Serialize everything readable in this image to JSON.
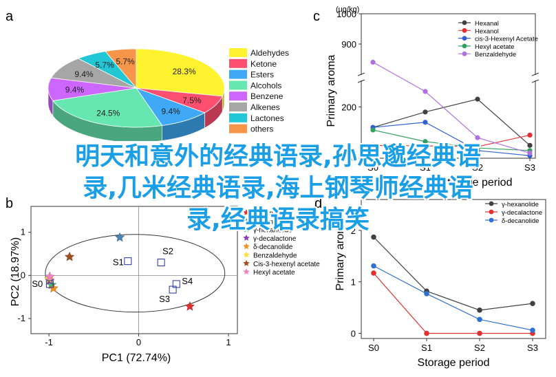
{
  "panels": {
    "a": "a",
    "b": "b",
    "c": "c",
    "d": "d"
  },
  "overlay_lines": [
    "明天和意外的经典语录,孙思邈经典语",
    "录,几米经典语录,海上钢琴师经典语",
    "录,经典语录搞笑"
  ],
  "chart_data": [
    {
      "id": "a",
      "type": "pie",
      "style": "3d",
      "slices": [
        {
          "name": "Aldehydes",
          "value": 28.3,
          "label": "28.3%",
          "color": "#fff22e"
        },
        {
          "name": "Ketone",
          "value": 7.5,
          "label": "7.5%",
          "color": "#ff4f70"
        },
        {
          "name": "Esters",
          "value": 9.4,
          "label": "9.4%",
          "color": "#3fa9f5"
        },
        {
          "name": "Alcohols",
          "value": 24.5,
          "label": "24.5%",
          "color": "#66e6b0"
        },
        {
          "name": "Benzene",
          "value": 9.4,
          "label": "9.4%",
          "color": "#cc66ff"
        },
        {
          "name": "Alkenes",
          "value": 9.4,
          "label": "9.4%",
          "color": "#a6a6a6"
        },
        {
          "name": "Lactones",
          "value": 5.7,
          "label": "5.7%",
          "color": "#22c7d6"
        },
        {
          "name": "others",
          "value": 5.7,
          "label": "5.7%",
          "color": "#f7964a"
        }
      ],
      "legend": [
        "Aldehydes",
        "Ketone",
        "Esters",
        "Alcohols",
        "Benzene",
        "Alkenes",
        "Lactones",
        "others"
      ],
      "legend_position": "right"
    },
    {
      "id": "b",
      "type": "scatter",
      "xlabel": "PC1 (72.74%)",
      "ylabel": "PC2 (18.97%)",
      "xlim": [
        -1.2,
        1.1
      ],
      "ylim": [
        -1.35,
        1.6
      ],
      "xticks": [
        -1,
        0,
        1
      ],
      "yticks": [
        -1,
        0,
        1
      ],
      "xtick_labels": [
        "-1",
        "0",
        "1"
      ],
      "ytick_labels": [
        "-1",
        "0",
        "1"
      ],
      "samples": [
        {
          "label": "S0",
          "x": -0.99,
          "y": -0.2
        },
        {
          "label": "S1",
          "x": -0.12,
          "y": 0.33
        },
        {
          "label": "S2",
          "x": 0.25,
          "y": 0.3
        },
        {
          "label": "S3",
          "x": 0.38,
          "y": -0.33
        },
        {
          "label": "S4",
          "x": 0.42,
          "y": -0.2
        }
      ],
      "variables": [
        {
          "name": "Hexanol",
          "x": 0.57,
          "y": -0.72,
          "color": "#e03030"
        },
        {
          "name": "Hexanal",
          "x": -0.21,
          "y": 0.88,
          "color": "#4a86b5"
        },
        {
          "name": "γ-hexanolide",
          "x": -0.97,
          "y": -0.22,
          "color": "#40b870"
        },
        {
          "name": "γ-decalactone",
          "x": -0.99,
          "y": -0.12,
          "color": "#8a3fb0"
        },
        {
          "name": "δ-decanolide",
          "x": -0.95,
          "y": -0.3,
          "color": "#f09020"
        },
        {
          "name": "Benzaldehyde",
          "x": -1.0,
          "y": -0.08,
          "color": "#f8e040"
        },
        {
          "name": "Cis-3-hexenyl acetate",
          "x": -0.77,
          "y": 0.43,
          "color": "#a05020"
        },
        {
          "name": "Hexyl acetate",
          "x": -0.99,
          "y": -0.03,
          "color": "#f080c0"
        }
      ]
    },
    {
      "id": "c",
      "type": "line",
      "xlabel": "Storage period",
      "ylabel": "Primary aroma",
      "yunit": "(ug/kg)",
      "categories": [
        "S0",
        "S1",
        "S2",
        "S3"
      ],
      "y_axis_break": [
        300,
        800
      ],
      "yticks": [
        0,
        200,
        900,
        1000
      ],
      "ytick_labels": [
        "0",
        "200",
        "900",
        "1000"
      ],
      "series": [
        {
          "name": "Hexanal",
          "color": "#404040",
          "values": [
            120,
            180,
            230,
            50
          ]
        },
        {
          "name": "Hexanol",
          "color": "#e03030",
          "values": [
            50,
            48,
            45,
            90
          ]
        },
        {
          "name": "cis-3-Hexenyl Acetate",
          "color": "#3060d0",
          "values": [
            120,
            140,
            30,
            10
          ]
        },
        {
          "name": "Hexyl acetate",
          "color": "#30a060",
          "values": [
            110,
            65,
            40,
            30
          ]
        },
        {
          "name": "Benzaldehyde",
          "color": "#b070e0",
          "values": [
            840,
            260,
            80,
            20
          ]
        }
      ]
    },
    {
      "id": "d",
      "type": "line",
      "xlabel": "Storage period",
      "ylabel": "Primary aroma",
      "categories": [
        "S0",
        "S1",
        "S2",
        "S3"
      ],
      "ylim": [
        -0.1,
        2.6
      ],
      "yticks": [
        0,
        1,
        2
      ],
      "ytick_labels": [
        "0",
        "1",
        "2"
      ],
      "series": [
        {
          "name": "γ-hexanolide",
          "color": "#404040",
          "values": [
            1.87,
            0.82,
            0.45,
            0.58
          ]
        },
        {
          "name": "γ-decalactone",
          "color": "#e03030",
          "values": [
            1.17,
            0.0,
            0.0,
            0.0
          ]
        },
        {
          "name": "δ-decanolide",
          "color": "#3070d0",
          "values": [
            1.31,
            0.77,
            0.27,
            0.06
          ]
        }
      ]
    }
  ]
}
